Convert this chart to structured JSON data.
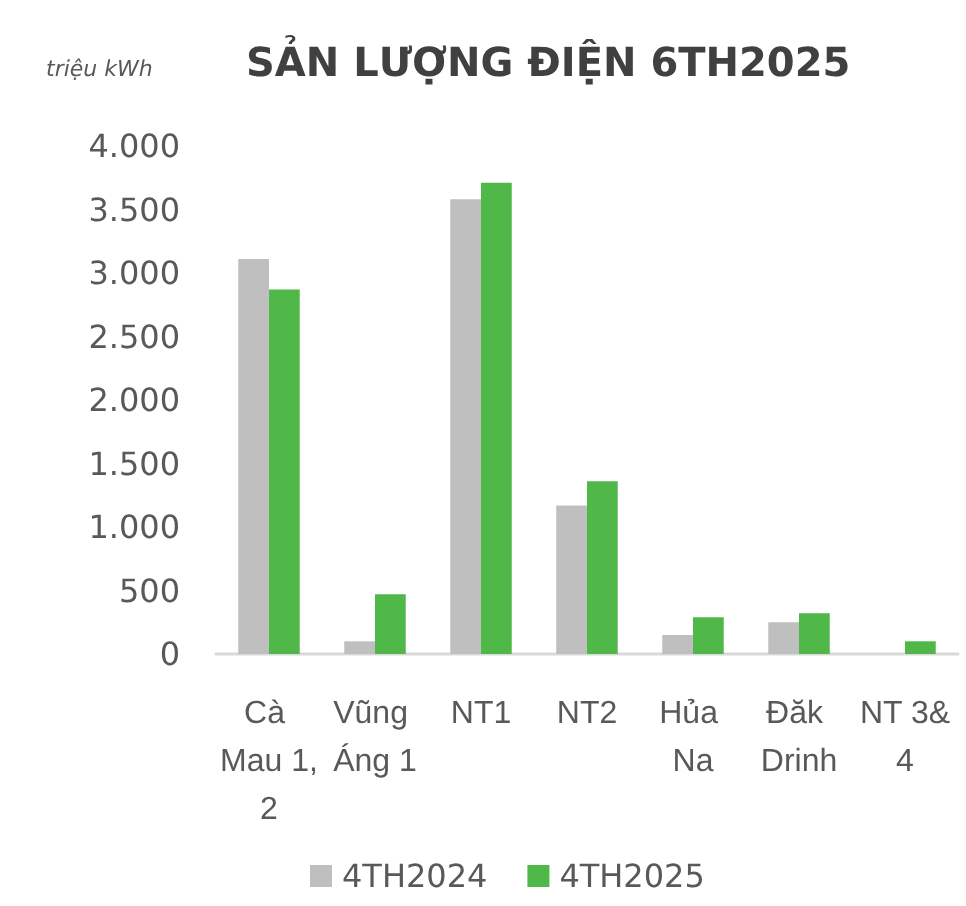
{
  "chart_data": {
    "type": "bar",
    "title": "SẢN LƯỢNG ĐIỆN 6TH2025",
    "ylabel": "triệu kWh",
    "categories": [
      "Cà Mau 1,2",
      "Vũng Áng 1",
      "NT1",
      "NT2",
      "Hủa Na",
      "Đăk Drinh",
      "NT 3&4"
    ],
    "series": [
      {
        "name": "4TH2024",
        "color": "#bfbfbf",
        "values": [
          3110,
          100,
          3580,
          1170,
          150,
          250,
          0
        ]
      },
      {
        "name": "4TH2025",
        "color": "#50b848",
        "values": [
          2870,
          470,
          3710,
          1360,
          290,
          320,
          100
        ]
      }
    ],
    "ylim": [
      0,
      4000
    ],
    "yticks": [
      0,
      500,
      {
        "value": 1000,
        "label": "1.000"
      },
      {
        "value": 1500,
        "label": "1.500"
      },
      {
        "value": 2000,
        "label": "2.000"
      },
      {
        "value": 2500,
        "label": "2.500"
      },
      {
        "value": 3000,
        "label": "3.000"
      },
      {
        "value": 3500,
        "label": "3.500"
      },
      {
        "value": 4000,
        "label": "4.000"
      }
    ],
    "grid": false,
    "legend": "bottom"
  }
}
